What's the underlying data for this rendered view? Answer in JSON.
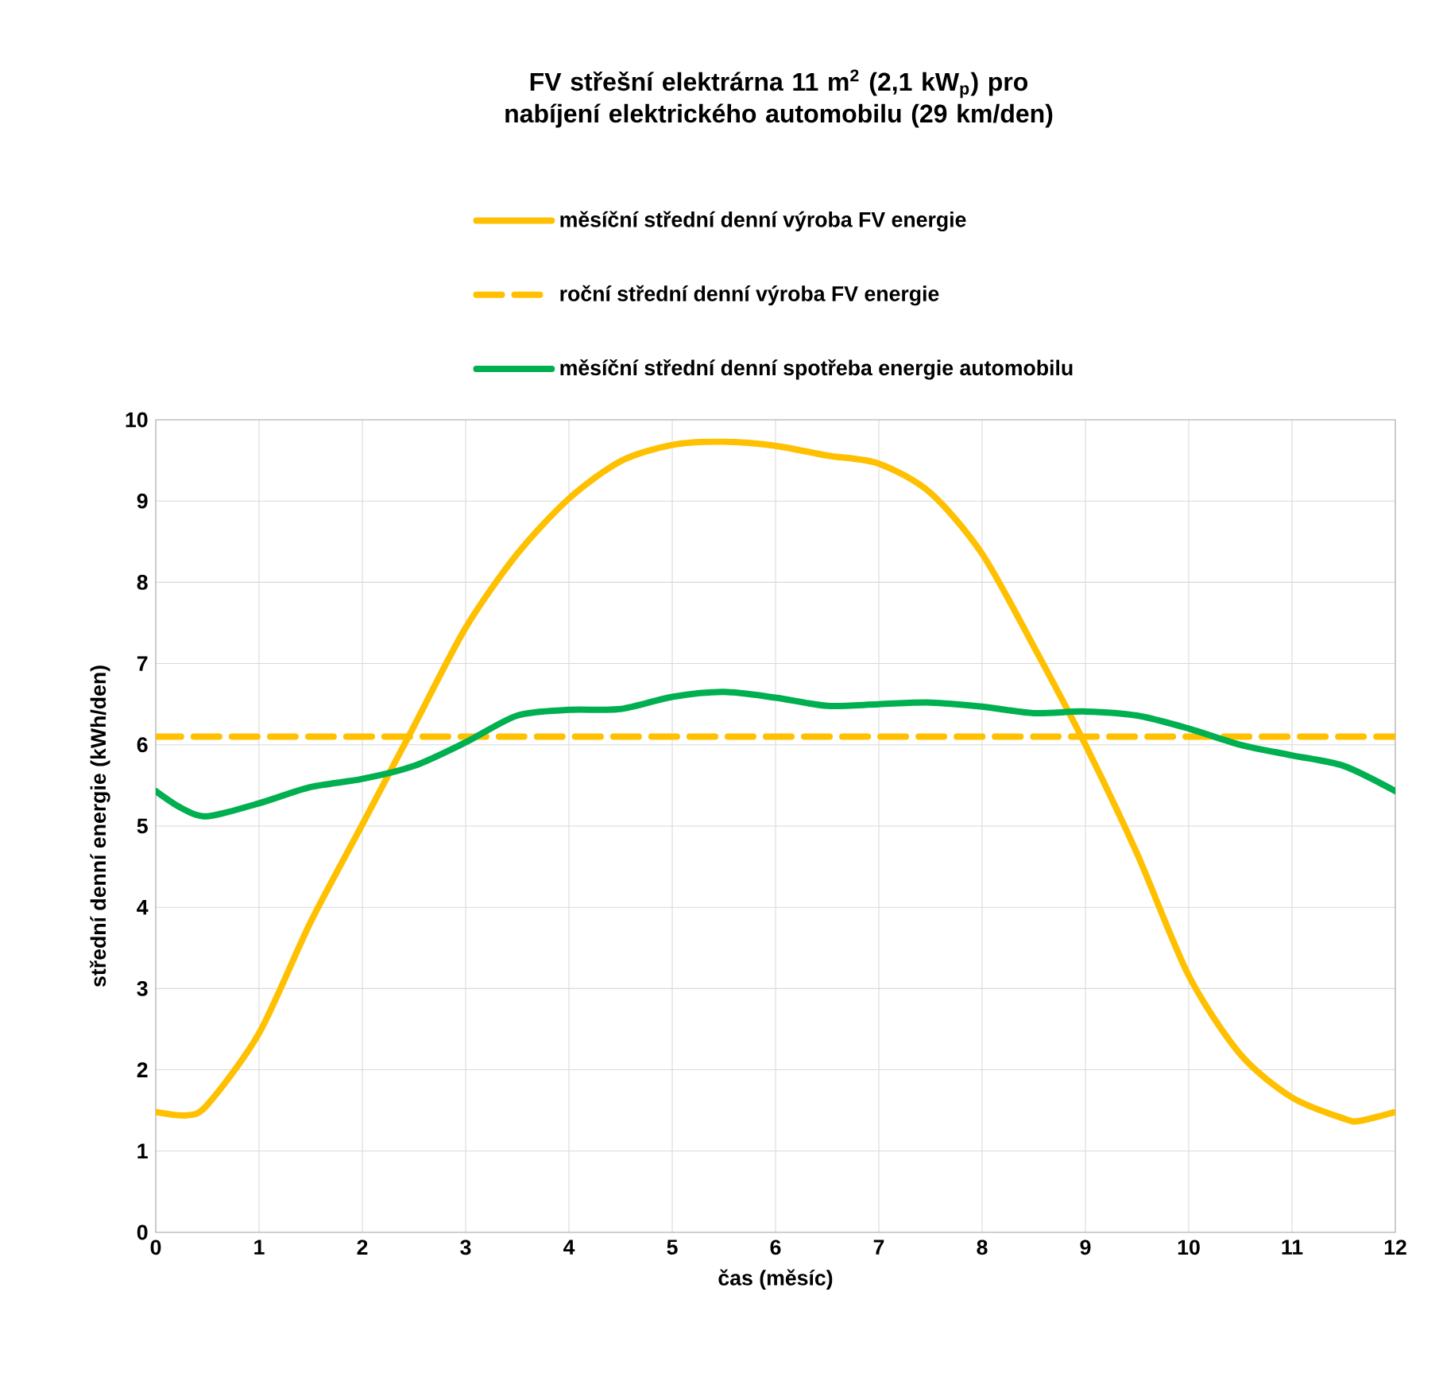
{
  "chart_data": {
    "type": "line",
    "title": "FV střešní elektrárna 11 m$^{2}$ (2,1 kW$_{p}$) pro nabíjení elektrického automobilu (29 km/den)",
    "xlabel": "čas (měsíc)",
    "ylabel": "střední denní energie (kWh/den)",
    "xlim": [
      0,
      12
    ],
    "ylim": [
      0,
      10
    ],
    "xticks": [
      0,
      1,
      2,
      3,
      4,
      5,
      6,
      7,
      8,
      9,
      10,
      11,
      12
    ],
    "yticks": [
      0,
      1,
      2,
      3,
      4,
      5,
      6,
      7,
      8,
      9,
      10
    ],
    "grid": true,
    "legend": "top",
    "series": [
      {
        "name": "měsíční střední denní výroba FV energie",
        "color": "#ffc000",
        "line_style": "solid",
        "x": [
          0,
          0.3,
          0.5,
          1,
          1.5,
          2,
          2.5,
          3,
          3.5,
          4,
          4.5,
          5,
          5.5,
          6,
          6.5,
          7,
          7.5,
          8,
          8.5,
          9,
          9.5,
          10,
          10.5,
          11,
          11.5,
          11.65,
          12
        ],
        "values": [
          1.48,
          1.44,
          1.57,
          2.45,
          3.82,
          5.02,
          6.23,
          7.44,
          8.35,
          9.03,
          9.49,
          9.69,
          9.73,
          9.68,
          9.56,
          9.46,
          9.1,
          8.35,
          7.21,
          6.0,
          4.66,
          3.16,
          2.19,
          1.66,
          1.4,
          1.37,
          1.48
        ]
      },
      {
        "name": "roční střední denní výroba FV energie",
        "color": "#ffc000",
        "line_style": "dashed",
        "x": [
          0,
          12
        ],
        "values": [
          6.1,
          6.1
        ]
      },
      {
        "name": "měsíční střední denní spotřeba energie automobilu",
        "color": "#00b050",
        "line_style": "solid",
        "x": [
          0,
          0.25,
          0.5,
          1,
          1.5,
          2,
          2.5,
          3,
          3.5,
          4,
          4.5,
          5,
          5.5,
          6,
          6.5,
          7,
          7.5,
          8,
          8.5,
          9,
          9.5,
          10,
          10.5,
          11,
          11.5,
          12
        ],
        "values": [
          5.43,
          5.22,
          5.12,
          5.28,
          5.48,
          5.58,
          5.74,
          6.03,
          6.36,
          6.43,
          6.44,
          6.59,
          6.65,
          6.58,
          6.48,
          6.5,
          6.52,
          6.47,
          6.39,
          6.41,
          6.36,
          6.2,
          6.0,
          5.87,
          5.74,
          5.43
        ]
      }
    ]
  }
}
